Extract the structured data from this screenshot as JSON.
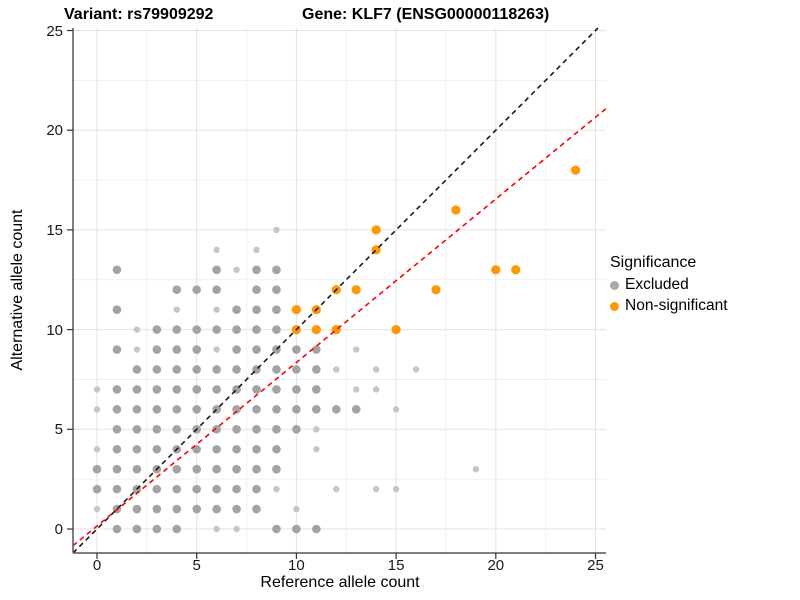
{
  "title": {
    "left": "Variant: rs79909292",
    "right": "Gene: KLF7 (ENSG00000118263)"
  },
  "axes": {
    "x_label": "Reference allele count",
    "y_label": "Alternative allele count",
    "x_ticks": [
      0,
      5,
      10,
      15,
      20,
      25
    ],
    "y_ticks": [
      0,
      5,
      10,
      15,
      20,
      25
    ]
  },
  "legend": {
    "title": "Significance",
    "items": [
      {
        "label": "Excluded",
        "color": "#A8A8A8"
      },
      {
        "label": "Non-significant",
        "color": "#FF9800"
      }
    ]
  },
  "colors": {
    "gray_point": "#A3A3A3",
    "gray_point_light": "#C6C6C6",
    "orange_point": "#FF9800",
    "identity_line": "#1A1A1A",
    "fit_line": "#FF0000",
    "grid_major": "#E3E3E3",
    "grid_minor": "#F1F1F1",
    "axis_line": "#555555"
  },
  "chart_data": {
    "type": "scatter",
    "title": "Variant: rs79909292 — Gene: KLF7 (ENSG00000118263)",
    "xlabel": "Reference allele count",
    "ylabel": "Alternative allele count",
    "xlim": [
      -1.2,
      25.5
    ],
    "ylim": [
      -1.3,
      25.1
    ],
    "grid": {
      "major_every": 5,
      "minor_every": 2.5
    },
    "legend_position": "right",
    "series": [
      {
        "name": "Excluded",
        "color": "#A3A3A3",
        "points": [
          [
            1,
            0,
            0
          ],
          [
            2,
            0,
            0
          ],
          [
            3,
            0,
            0
          ],
          [
            4,
            0,
            0
          ],
          [
            6,
            0,
            1
          ],
          [
            7,
            0,
            1
          ],
          [
            9,
            0,
            0
          ],
          [
            10,
            0,
            0
          ],
          [
            11,
            0,
            0
          ],
          [
            0,
            1,
            1
          ],
          [
            1,
            1,
            0
          ],
          [
            2,
            1,
            0
          ],
          [
            3,
            1,
            0
          ],
          [
            4,
            1,
            0
          ],
          [
            5,
            1,
            0
          ],
          [
            6,
            1,
            0
          ],
          [
            7,
            1,
            0
          ],
          [
            8,
            1,
            0
          ],
          [
            10,
            1,
            1
          ],
          [
            0,
            2,
            0
          ],
          [
            1,
            2,
            0
          ],
          [
            2,
            2,
            0
          ],
          [
            3,
            2,
            0
          ],
          [
            4,
            2,
            0
          ],
          [
            5,
            2,
            0
          ],
          [
            6,
            2,
            0
          ],
          [
            7,
            2,
            0
          ],
          [
            8,
            2,
            0
          ],
          [
            9,
            2,
            1
          ],
          [
            12,
            2,
            1
          ],
          [
            14,
            2,
            1
          ],
          [
            15,
            2,
            1
          ],
          [
            0,
            3,
            0
          ],
          [
            1,
            3,
            0
          ],
          [
            2,
            3,
            0
          ],
          [
            3,
            3,
            0
          ],
          [
            4,
            3,
            0
          ],
          [
            5,
            3,
            0
          ],
          [
            6,
            3,
            0
          ],
          [
            7,
            3,
            0
          ],
          [
            8,
            3,
            0
          ],
          [
            9,
            3,
            0
          ],
          [
            19,
            3,
            1
          ],
          [
            0,
            4,
            1
          ],
          [
            1,
            4,
            0
          ],
          [
            2,
            4,
            0
          ],
          [
            3,
            4,
            0
          ],
          [
            4,
            4,
            0
          ],
          [
            5,
            4,
            0
          ],
          [
            6,
            4,
            0
          ],
          [
            7,
            4,
            0
          ],
          [
            8,
            4,
            0
          ],
          [
            9,
            4,
            0
          ],
          [
            11,
            4,
            1
          ],
          [
            1,
            5,
            0
          ],
          [
            2,
            5,
            0
          ],
          [
            3,
            5,
            0
          ],
          [
            4,
            5,
            0
          ],
          [
            5,
            5,
            0
          ],
          [
            6,
            5,
            0
          ],
          [
            7,
            5,
            0
          ],
          [
            8,
            5,
            0
          ],
          [
            9,
            5,
            0
          ],
          [
            10,
            5,
            0
          ],
          [
            11,
            5,
            1
          ],
          [
            0,
            6,
            1
          ],
          [
            1,
            6,
            0
          ],
          [
            2,
            6,
            0
          ],
          [
            3,
            6,
            0
          ],
          [
            4,
            6,
            0
          ],
          [
            5,
            6,
            0
          ],
          [
            6,
            6,
            0
          ],
          [
            7,
            6,
            0
          ],
          [
            8,
            6,
            0
          ],
          [
            9,
            6,
            0
          ],
          [
            10,
            6,
            0
          ],
          [
            11,
            6,
            0
          ],
          [
            12,
            6,
            0
          ],
          [
            13,
            6,
            0
          ],
          [
            15,
            6,
            1
          ],
          [
            0,
            7,
            1
          ],
          [
            1,
            7,
            0
          ],
          [
            2,
            7,
            0
          ],
          [
            3,
            7,
            0
          ],
          [
            4,
            7,
            0
          ],
          [
            5,
            7,
            0
          ],
          [
            6,
            7,
            0
          ],
          [
            7,
            7,
            0
          ],
          [
            8,
            7,
            0
          ],
          [
            9,
            7,
            0
          ],
          [
            10,
            7,
            0
          ],
          [
            11,
            7,
            0
          ],
          [
            13,
            7,
            1
          ],
          [
            14,
            7,
            1
          ],
          [
            2,
            8,
            0
          ],
          [
            3,
            8,
            0
          ],
          [
            4,
            8,
            0
          ],
          [
            5,
            8,
            0
          ],
          [
            6,
            8,
            0
          ],
          [
            7,
            8,
            0
          ],
          [
            8,
            8,
            0
          ],
          [
            9,
            8,
            0
          ],
          [
            10,
            8,
            0
          ],
          [
            11,
            8,
            0
          ],
          [
            12,
            8,
            1
          ],
          [
            14,
            8,
            1
          ],
          [
            16,
            8,
            1
          ],
          [
            1,
            9,
            0
          ],
          [
            2,
            9,
            1
          ],
          [
            3,
            9,
            0
          ],
          [
            4,
            9,
            0
          ],
          [
            5,
            9,
            0
          ],
          [
            6,
            9,
            1
          ],
          [
            7,
            9,
            0
          ],
          [
            8,
            9,
            0
          ],
          [
            9,
            9,
            0
          ],
          [
            10,
            9,
            0
          ],
          [
            11,
            9,
            0
          ],
          [
            13,
            9,
            1
          ],
          [
            2,
            10,
            1
          ],
          [
            3,
            10,
            0
          ],
          [
            4,
            10,
            0
          ],
          [
            5,
            10,
            0
          ],
          [
            6,
            10,
            0
          ],
          [
            7,
            10,
            0
          ],
          [
            8,
            10,
            0
          ],
          [
            9,
            10,
            0
          ],
          [
            1,
            11,
            0
          ],
          [
            4,
            11,
            1
          ],
          [
            6,
            11,
            1
          ],
          [
            7,
            11,
            0
          ],
          [
            8,
            11,
            0
          ],
          [
            9,
            11,
            0
          ],
          [
            4,
            12,
            0
          ],
          [
            5,
            12,
            0
          ],
          [
            6,
            12,
            0
          ],
          [
            8,
            12,
            0
          ],
          [
            9,
            12,
            0
          ],
          [
            1,
            13,
            0
          ],
          [
            6,
            13,
            0
          ],
          [
            7,
            13,
            1
          ],
          [
            8,
            13,
            0
          ],
          [
            9,
            13,
            0
          ],
          [
            6,
            14,
            1
          ],
          [
            8,
            14,
            1
          ],
          [
            9,
            15,
            1
          ]
        ]
      },
      {
        "name": "Non-significant",
        "color": "#FF9800",
        "points": [
          [
            10,
            10,
            0
          ],
          [
            11,
            10,
            0
          ],
          [
            12,
            10,
            0
          ],
          [
            15,
            10,
            0
          ],
          [
            10,
            11,
            0
          ],
          [
            11,
            11,
            0
          ],
          [
            12,
            12,
            0
          ],
          [
            13,
            12,
            0
          ],
          [
            17,
            12,
            0
          ],
          [
            20,
            13,
            0
          ],
          [
            21,
            13,
            0
          ],
          [
            14,
            14,
            0
          ],
          [
            14,
            15,
            0
          ],
          [
            18,
            16,
            0
          ],
          [
            24,
            18,
            0
          ]
        ]
      }
    ],
    "lines": [
      {
        "name": "identity",
        "slope": 1.0,
        "intercept": 0.0,
        "style": "dashed",
        "color": "#1A1A1A"
      },
      {
        "name": "regression",
        "slope": 0.82,
        "intercept": 0.15,
        "style": "dashed",
        "color": "#FF0000"
      }
    ]
  }
}
